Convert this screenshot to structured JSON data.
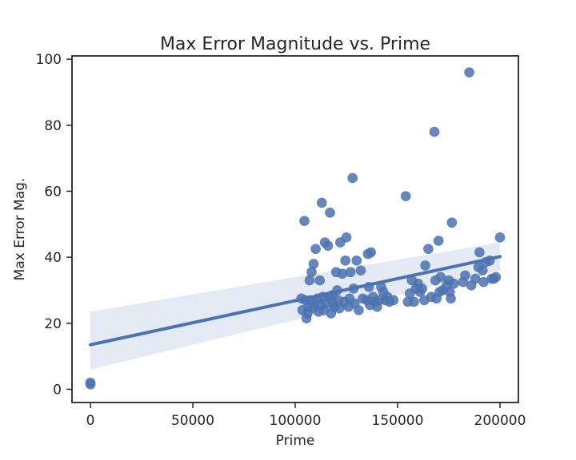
{
  "chart_data": {
    "type": "scatter",
    "title": "Max Error Magnitude vs. Prime",
    "xlabel": "Prime",
    "ylabel": "Max Error Mag.",
    "xlim": [
      -9000,
      209000
    ],
    "ylim": [
      -4,
      101
    ],
    "xticks": [
      0,
      50000,
      100000,
      150000,
      200000
    ],
    "yticks": [
      0,
      20,
      40,
      60,
      80,
      100
    ],
    "grid": false,
    "regression": {
      "x": [
        0,
        200000
      ],
      "y": [
        13.5,
        40.2
      ],
      "ci_lower": [
        6.0,
        36.0
      ],
      "ci_upper": [
        23.5,
        44.5
      ]
    },
    "points": [
      [
        0,
        2.0
      ],
      [
        0,
        1.5
      ],
      [
        103000,
        27.5
      ],
      [
        103500,
        24.0
      ],
      [
        104500,
        51.0
      ],
      [
        105000,
        27.0
      ],
      [
        105500,
        21.5
      ],
      [
        106000,
        23.0
      ],
      [
        106500,
        25.0
      ],
      [
        107000,
        33.0
      ],
      [
        107500,
        27.0
      ],
      [
        108000,
        35.5
      ],
      [
        108500,
        24.5
      ],
      [
        109000,
        38.0
      ],
      [
        109500,
        26.0
      ],
      [
        110000,
        42.5
      ],
      [
        111000,
        27.5
      ],
      [
        111500,
        23.5
      ],
      [
        112000,
        33.0
      ],
      [
        112500,
        25.5
      ],
      [
        113000,
        56.5
      ],
      [
        113500,
        28.0
      ],
      [
        114000,
        24.0
      ],
      [
        114500,
        44.5
      ],
      [
        115000,
        26.0
      ],
      [
        116000,
        43.5
      ],
      [
        116500,
        28.0
      ],
      [
        117000,
        53.5
      ],
      [
        117500,
        23.0
      ],
      [
        118000,
        28.5
      ],
      [
        118500,
        26.0
      ],
      [
        119000,
        25.0
      ],
      [
        120000,
        35.5
      ],
      [
        120500,
        30.0
      ],
      [
        121000,
        27.0
      ],
      [
        121500,
        24.5
      ],
      [
        122000,
        44.5
      ],
      [
        123000,
        35.0
      ],
      [
        124000,
        26.5
      ],
      [
        124500,
        39.0
      ],
      [
        125000,
        46.0
      ],
      [
        126000,
        25.0
      ],
      [
        126500,
        27.5
      ],
      [
        127000,
        35.5
      ],
      [
        128000,
        64.0
      ],
      [
        128500,
        30.5
      ],
      [
        129000,
        26.0
      ],
      [
        130000,
        39.0
      ],
      [
        131000,
        24.0
      ],
      [
        132000,
        36.0
      ],
      [
        133000,
        27.5
      ],
      [
        135000,
        27.0
      ],
      [
        135500,
        41.0
      ],
      [
        136000,
        31.0
      ],
      [
        136500,
        25.5
      ],
      [
        137000,
        41.5
      ],
      [
        138000,
        28.0
      ],
      [
        139000,
        26.5
      ],
      [
        140000,
        25.0
      ],
      [
        141000,
        27.0
      ],
      [
        142000,
        31.0
      ],
      [
        143000,
        29.5
      ],
      [
        144000,
        27.0
      ],
      [
        145000,
        28.0
      ],
      [
        146000,
        26.5
      ],
      [
        148000,
        27.0
      ],
      [
        154000,
        58.5
      ],
      [
        155000,
        26.5
      ],
      [
        156000,
        29.0
      ],
      [
        157000,
        33.0
      ],
      [
        158000,
        26.5
      ],
      [
        159000,
        30.5
      ],
      [
        160000,
        32.0
      ],
      [
        161000,
        29.5
      ],
      [
        162000,
        30.5
      ],
      [
        163000,
        27.0
      ],
      [
        163500,
        37.5
      ],
      [
        165000,
        42.5
      ],
      [
        166500,
        28.0
      ],
      [
        168000,
        78.0
      ],
      [
        168500,
        33.0
      ],
      [
        169000,
        27.5
      ],
      [
        170000,
        45.0
      ],
      [
        170500,
        29.5
      ],
      [
        171000,
        34.0
      ],
      [
        172000,
        30.0
      ],
      [
        174000,
        31.5
      ],
      [
        175000,
        33.0
      ],
      [
        175500,
        29.5
      ],
      [
        176000,
        27.5
      ],
      [
        176500,
        50.5
      ],
      [
        177500,
        32.0
      ],
      [
        182000,
        32.5
      ],
      [
        183000,
        34.5
      ],
      [
        185000,
        96.0
      ],
      [
        186000,
        31.5
      ],
      [
        188000,
        33.5
      ],
      [
        189500,
        37.0
      ],
      [
        190000,
        41.5
      ],
      [
        191500,
        36.0
      ],
      [
        192000,
        32.5
      ],
      [
        193000,
        38.5
      ],
      [
        195000,
        39.0
      ],
      [
        196000,
        33.5
      ],
      [
        197000,
        33.5
      ],
      [
        198000,
        34.0
      ],
      [
        200000,
        46.0
      ]
    ]
  }
}
